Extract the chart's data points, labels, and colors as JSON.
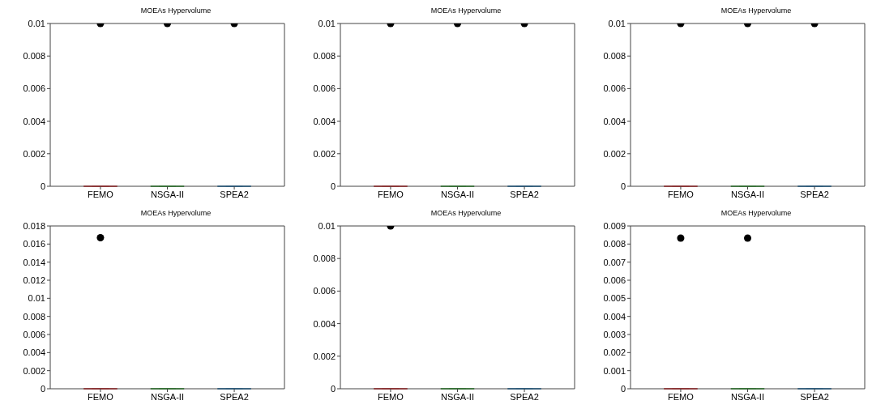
{
  "chart_data": [
    {
      "type": "box",
      "title": "MOEAs Hypervolume",
      "categories": [
        "FEMO",
        "NSGA-II",
        "SPEA2"
      ],
      "colors": [
        "#d62728",
        "#2ca02c",
        "#1f77b4"
      ],
      "ylim": [
        0,
        0.01
      ],
      "yticks": [
        0,
        0.002,
        0.004,
        0.006,
        0.008,
        0.01
      ],
      "boxes": [
        {
          "low": 0,
          "q1": 0,
          "median": 0,
          "q3": 0,
          "high": 0,
          "outliers": [
            0.01
          ]
        },
        {
          "low": 0,
          "q1": 0,
          "median": 0,
          "q3": 0,
          "high": 0,
          "outliers": [
            0.01
          ]
        },
        {
          "low": 0,
          "q1": 0,
          "median": 0,
          "q3": 0,
          "high": 0,
          "outliers": [
            0.01
          ]
        }
      ]
    },
    {
      "type": "box",
      "title": "MOEAs Hypervolume",
      "categories": [
        "FEMO",
        "NSGA-II",
        "SPEA2"
      ],
      "colors": [
        "#d62728",
        "#2ca02c",
        "#1f77b4"
      ],
      "ylim": [
        0,
        0.01
      ],
      "yticks": [
        0,
        0.002,
        0.004,
        0.006,
        0.008,
        0.01
      ],
      "boxes": [
        {
          "low": 0,
          "q1": 0,
          "median": 0,
          "q3": 0,
          "high": 0,
          "outliers": [
            0.01
          ]
        },
        {
          "low": 0,
          "q1": 0,
          "median": 0,
          "q3": 0,
          "high": 0,
          "outliers": [
            0.01
          ]
        },
        {
          "low": 0,
          "q1": 0,
          "median": 0,
          "q3": 0,
          "high": 0,
          "outliers": [
            0.01
          ]
        }
      ]
    },
    {
      "type": "box",
      "title": "MOEAs Hypervolume",
      "categories": [
        "FEMO",
        "NSGA-II",
        "SPEA2"
      ],
      "colors": [
        "#d62728",
        "#2ca02c",
        "#1f77b4"
      ],
      "ylim": [
        0,
        0.01
      ],
      "yticks": [
        0,
        0.002,
        0.004,
        0.006,
        0.008,
        0.01
      ],
      "boxes": [
        {
          "low": 0,
          "q1": 0,
          "median": 0,
          "q3": 0,
          "high": 0,
          "outliers": [
            0.01
          ]
        },
        {
          "low": 0,
          "q1": 0,
          "median": 0,
          "q3": 0,
          "high": 0,
          "outliers": [
            0.01
          ]
        },
        {
          "low": 0,
          "q1": 0,
          "median": 0,
          "q3": 0,
          "high": 0,
          "outliers": [
            0.01
          ]
        }
      ]
    },
    {
      "type": "box",
      "title": "MOEAs Hypervolume",
      "categories": [
        "FEMO",
        "NSGA-II",
        "SPEA2"
      ],
      "colors": [
        "#d62728",
        "#2ca02c",
        "#1f77b4"
      ],
      "ylim": [
        0,
        0.018
      ],
      "yticks": [
        0,
        0.002,
        0.004,
        0.006,
        0.008,
        0.01,
        0.012,
        0.014,
        0.016,
        0.018
      ],
      "boxes": [
        {
          "low": 0,
          "q1": 0,
          "median": 0,
          "q3": 0,
          "high": 0,
          "outliers": [
            0.0167
          ]
        },
        {
          "low": 0,
          "q1": 0,
          "median": 0,
          "q3": 0,
          "high": 0
        },
        {
          "low": 0,
          "q1": 0,
          "median": 0,
          "q3": 0,
          "high": 0
        }
      ]
    },
    {
      "type": "box",
      "title": "MOEAs Hypervolume",
      "categories": [
        "FEMO",
        "NSGA-II",
        "SPEA2"
      ],
      "colors": [
        "#d62728",
        "#2ca02c",
        "#1f77b4"
      ],
      "ylim": [
        0,
        0.01
      ],
      "yticks": [
        0,
        0.002,
        0.004,
        0.006,
        0.008,
        0.01
      ],
      "boxes": [
        {
          "low": 0,
          "q1": 0,
          "median": 0,
          "q3": 0,
          "high": 0,
          "outliers": [
            0.01
          ]
        },
        {
          "low": 0,
          "q1": 0,
          "median": 0,
          "q3": 0,
          "high": 0
        },
        {
          "low": 0,
          "q1": 0,
          "median": 0,
          "q3": 0,
          "high": 0
        }
      ]
    },
    {
      "type": "box",
      "title": "MOEAs Hypervolume",
      "categories": [
        "FEMO",
        "NSGA-II",
        "SPEA2"
      ],
      "colors": [
        "#d62728",
        "#2ca02c",
        "#1f77b4"
      ],
      "ylim": [
        0,
        0.009
      ],
      "yticks": [
        0,
        0.001,
        0.002,
        0.003,
        0.004,
        0.005,
        0.006,
        0.007,
        0.008,
        0.009
      ],
      "boxes": [
        {
          "low": 0,
          "q1": 0,
          "median": 0,
          "q3": 0,
          "high": 0,
          "outliers": [
            0.00833
          ]
        },
        {
          "low": 0,
          "q1": 0,
          "median": 0,
          "q3": 0,
          "high": 0,
          "outliers": [
            0.00833
          ]
        },
        {
          "low": 0,
          "q1": 0,
          "median": 0,
          "q3": 0,
          "high": 0
        }
      ]
    }
  ]
}
